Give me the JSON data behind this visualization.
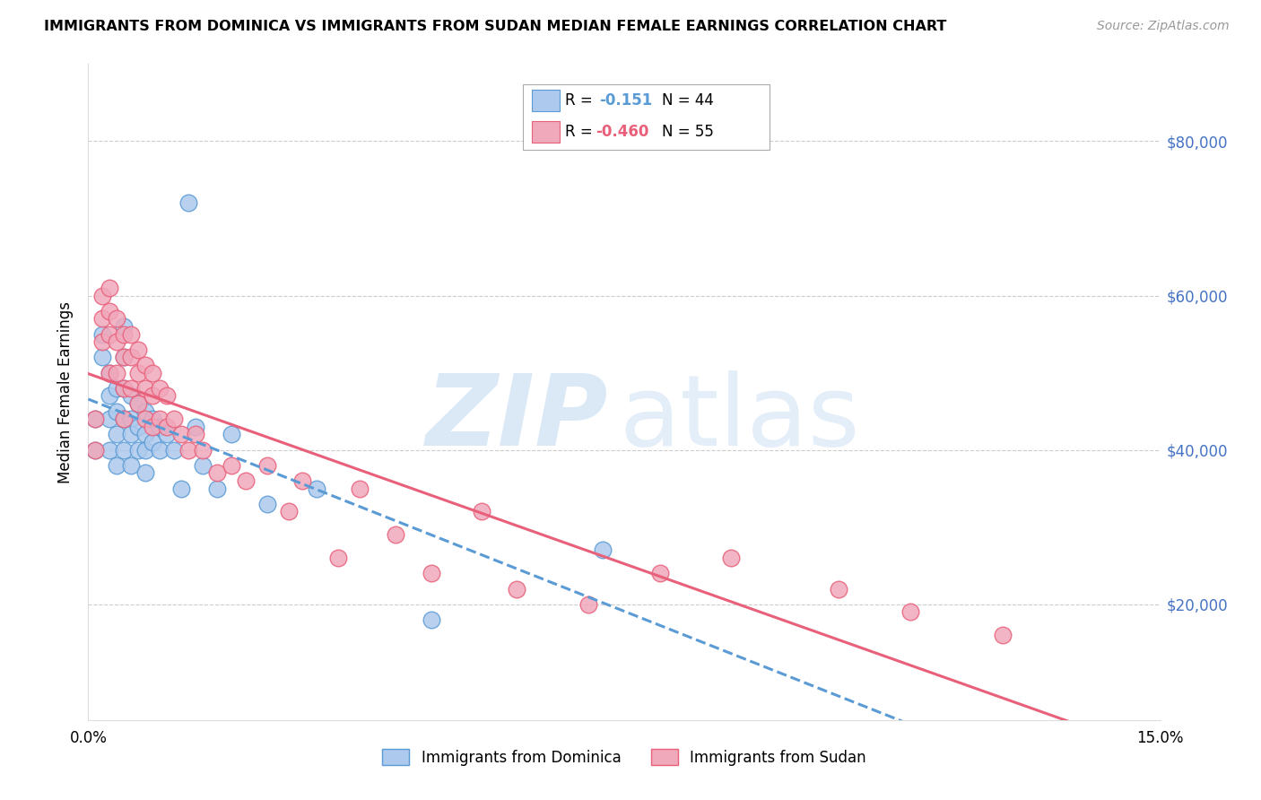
{
  "title": "IMMIGRANTS FROM DOMINICA VS IMMIGRANTS FROM SUDAN MEDIAN FEMALE EARNINGS CORRELATION CHART",
  "source": "Source: ZipAtlas.com",
  "ylabel": "Median Female Earnings",
  "xlim": [
    0.0,
    0.15
  ],
  "ylim": [
    5000,
    90000
  ],
  "yticks": [
    20000,
    40000,
    60000,
    80000
  ],
  "ytick_labels": [
    "$20,000",
    "$40,000",
    "$60,000",
    "$80,000"
  ],
  "color_dominica": "#adc9ed",
  "color_sudan": "#f0a8bb",
  "color_dominica_line": "#5b9bd5",
  "color_sudan_line": "#e8607a",
  "color_ytick": "#4472c4",
  "dominica_x": [
    0.001,
    0.001,
    0.002,
    0.002,
    0.003,
    0.003,
    0.003,
    0.003,
    0.004,
    0.004,
    0.004,
    0.004,
    0.005,
    0.005,
    0.005,
    0.005,
    0.005,
    0.006,
    0.006,
    0.006,
    0.006,
    0.007,
    0.007,
    0.007,
    0.008,
    0.008,
    0.008,
    0.008,
    0.009,
    0.009,
    0.01,
    0.01,
    0.011,
    0.012,
    0.013,
    0.014,
    0.015,
    0.016,
    0.018,
    0.02,
    0.025,
    0.032,
    0.048,
    0.072
  ],
  "dominica_y": [
    44000,
    40000,
    55000,
    52000,
    50000,
    47000,
    44000,
    40000,
    48000,
    45000,
    42000,
    38000,
    56000,
    52000,
    48000,
    44000,
    40000,
    47000,
    44000,
    42000,
    38000,
    46000,
    43000,
    40000,
    45000,
    42000,
    40000,
    37000,
    44000,
    41000,
    43000,
    40000,
    42000,
    40000,
    35000,
    72000,
    43000,
    38000,
    35000,
    42000,
    33000,
    35000,
    18000,
    27000
  ],
  "sudan_x": [
    0.001,
    0.001,
    0.002,
    0.002,
    0.002,
    0.003,
    0.003,
    0.003,
    0.003,
    0.004,
    0.004,
    0.004,
    0.005,
    0.005,
    0.005,
    0.005,
    0.006,
    0.006,
    0.006,
    0.007,
    0.007,
    0.007,
    0.008,
    0.008,
    0.008,
    0.009,
    0.009,
    0.009,
    0.01,
    0.01,
    0.011,
    0.011,
    0.012,
    0.013,
    0.014,
    0.015,
    0.016,
    0.018,
    0.02,
    0.022,
    0.025,
    0.028,
    0.03,
    0.035,
    0.038,
    0.043,
    0.048,
    0.055,
    0.06,
    0.07,
    0.08,
    0.09,
    0.105,
    0.115,
    0.128
  ],
  "sudan_y": [
    44000,
    40000,
    60000,
    57000,
    54000,
    61000,
    58000,
    55000,
    50000,
    57000,
    54000,
    50000,
    55000,
    52000,
    48000,
    44000,
    55000,
    52000,
    48000,
    53000,
    50000,
    46000,
    51000,
    48000,
    44000,
    50000,
    47000,
    43000,
    48000,
    44000,
    47000,
    43000,
    44000,
    42000,
    40000,
    42000,
    40000,
    37000,
    38000,
    36000,
    38000,
    32000,
    36000,
    26000,
    35000,
    29000,
    24000,
    32000,
    22000,
    20000,
    24000,
    26000,
    22000,
    19000,
    16000
  ]
}
